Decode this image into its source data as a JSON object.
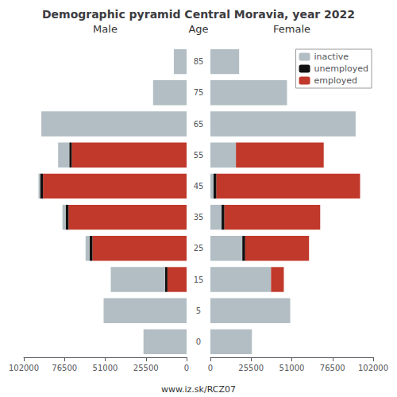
{
  "chart_data": {
    "type": "bar",
    "title": "Demographic pyramid Central Moravia, year 2022",
    "ylabel": "Age",
    "annotations": [
      "www.iz.sk/RCZ07"
    ],
    "orientation": "horizontal",
    "stacked": true,
    "grid": false,
    "legend": "upper right",
    "categories": [
      "85",
      "75",
      "65",
      "55",
      "45",
      "35",
      "25",
      "15",
      "5",
      "0"
    ],
    "xlim": [
      0,
      102000
    ],
    "xticks": [
      0,
      25500,
      51000,
      76500,
      102000
    ],
    "panels": [
      {
        "title": "Male",
        "series": [
          {
            "name": "employed",
            "color": "#c0392b",
            "values": [
              0,
              0,
              0,
              72000,
              90000,
              74000,
              59000,
              12000,
              0,
              0
            ]
          },
          {
            "name": "unemployed",
            "color": "#111111",
            "values": [
              0,
              0,
              0,
              1500,
              1800,
              1800,
              1800,
              1500,
              0,
              0
            ]
          },
          {
            "name": "inactive",
            "color": "#b2bec3",
            "values": [
              8000,
              21000,
              91000,
              7000,
              1000,
              2000,
              2500,
              34000,
              52000,
              27000
            ]
          }
        ]
      },
      {
        "title": "Female",
        "series": [
          {
            "name": "inactive",
            "color": "#b2bec3",
            "values": [
              18000,
              48000,
              91000,
              16000,
              2000,
              7000,
              20000,
              38000,
              50000,
              26000
            ]
          },
          {
            "name": "unemployed",
            "color": "#111111",
            "values": [
              0,
              0,
              0,
              0,
              1800,
              1800,
              1800,
              0,
              0,
              0
            ]
          },
          {
            "name": "employed",
            "color": "#c0392b",
            "values": [
              0,
              0,
              0,
              55000,
              90000,
              60000,
              40000,
              8000,
              0,
              0
            ]
          }
        ]
      }
    ]
  }
}
